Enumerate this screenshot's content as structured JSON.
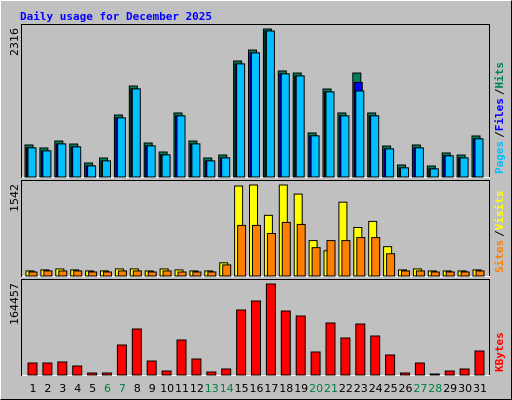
{
  "chart_data": [
    {
      "type": "bar",
      "title": "Daily usage for December 2025",
      "ylim": [
        0,
        2316
      ],
      "yticks": [
        2316
      ],
      "legend_separator": "/",
      "series": [
        {
          "name": "Hits",
          "color": "#00805c",
          "values": [
            501,
            454,
            563,
            516,
            219,
            297,
            970,
            1424,
            532,
            391,
            1002,
            563,
            297,
            344,
            1815,
            1987,
            2316,
            1659,
            1627,
            689,
            1377,
            1002,
            1627,
            1002,
            485,
            188,
            501,
            172,
            376,
            344,
            642
          ]
        },
        {
          "name": "Files",
          "color": "#0000ff",
          "values": [
            456,
            409,
            518,
            471,
            174,
            252,
            925,
            1379,
            487,
            346,
            957,
            518,
            252,
            299,
            1770,
            1942,
            2285,
            1614,
            1582,
            644,
            1332,
            957,
            1480,
            957,
            440,
            143,
            456,
            127,
            331,
            299,
            597
          ]
        },
        {
          "name": "Pages",
          "color": "#00c0ff",
          "values": [
            456,
            409,
            518,
            471,
            174,
            252,
            925,
            1379,
            487,
            346,
            957,
            518,
            252,
            299,
            1770,
            1942,
            2285,
            1614,
            1582,
            644,
            1332,
            957,
            1346,
            957,
            440,
            143,
            456,
            127,
            331,
            299,
            597
          ]
        }
      ]
    },
    {
      "type": "bar",
      "ylim": [
        0,
        1542
      ],
      "yticks": [
        1542
      ],
      "legend_separator": "/",
      "series": [
        {
          "name": "Visits",
          "color": "#ffff00",
          "values": [
            86,
            103,
            120,
            103,
            86,
            86,
            120,
            120,
            86,
            120,
            103,
            86,
            86,
            223,
            1525,
            1542,
            1028,
            1542,
            1388,
            600,
            428,
            1251,
            822,
            925,
            497,
            103,
            120,
            86,
            86,
            86,
            103
          ]
        },
        {
          "name": "Sites",
          "color": "#ff8000",
          "values": [
            68,
            86,
            86,
            86,
            68,
            68,
            86,
            86,
            68,
            86,
            68,
            68,
            68,
            188,
            857,
            857,
            720,
            908,
            874,
            480,
            600,
            600,
            651,
            651,
            377,
            86,
            86,
            68,
            68,
            68,
            86
          ]
        }
      ]
    },
    {
      "type": "bar",
      "ylim": [
        0,
        164457
      ],
      "yticks": [
        164457
      ],
      "categories": [
        "1",
        "2",
        "3",
        "4",
        "5",
        "6",
        "7",
        "8",
        "9",
        "10",
        "11",
        "12",
        "13",
        "14",
        "15",
        "16",
        "17",
        "18",
        "19",
        "20",
        "21",
        "22",
        "23",
        "24",
        "25",
        "26",
        "27",
        "28",
        "29",
        "30",
        "31"
      ],
      "category_colors": [
        "#000000",
        "#000000",
        "#000000",
        "#000000",
        "#000000",
        "#008040",
        "#008040",
        "#000000",
        "#000000",
        "#000000",
        "#000000",
        "#000000",
        "#008040",
        "#008040",
        "#000000",
        "#000000",
        "#000000",
        "#000000",
        "#000000",
        "#008040",
        "#008040",
        "#000000",
        "#000000",
        "#000000",
        "#000000",
        "#000000",
        "#008040",
        "#008040",
        "#000000",
        "#000000",
        "#000000"
      ],
      "series": [
        {
          "name": "KBytes",
          "color": "#ff0000",
          "values": [
            21687,
            21687,
            23494,
            16265,
            3614,
            3614,
            54217,
            83131,
            25301,
            7229,
            63253,
            28916,
            5422,
            10843,
            117469,
            133735,
            164457,
            115663,
            106626,
            41566,
            93975,
            66868,
            92169,
            70482,
            36145,
            3614,
            21687,
            1807,
            7229,
            10843,
            43373
          ]
        }
      ]
    }
  ]
}
